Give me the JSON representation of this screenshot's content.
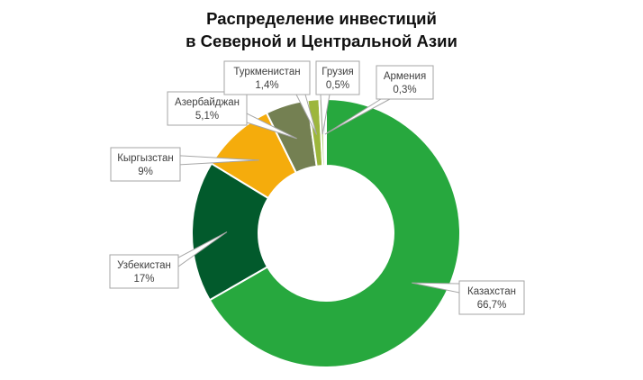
{
  "title_lines": [
    "Распределение инвестиций",
    "в Северной и Центральной Азии"
  ],
  "chart_data": {
    "type": "pie",
    "variant": "doughnut",
    "title": "Распределение инвестиций в Северной и Центральной Азии",
    "unit": "%",
    "slices": [
      {
        "name": "Казахстан",
        "value": 66.7,
        "label": "66,7%",
        "color": "#27a83e"
      },
      {
        "name": "Узбекистан",
        "value": 17,
        "label": "17%",
        "color": "#025a2c"
      },
      {
        "name": "Кыргызстан",
        "value": 9,
        "label": "9%",
        "color": "#f5ac0c"
      },
      {
        "name": "Азербайджан",
        "value": 5.1,
        "label": "5,1%",
        "color": "#748052"
      },
      {
        "name": "Туркменистан",
        "value": 1.4,
        "label": "1,4%",
        "color": "#9db63c"
      },
      {
        "name": "Грузия",
        "value": 0.5,
        "label": "0,5%",
        "color": "#bcd58a"
      },
      {
        "name": "Армения",
        "value": 0.3,
        "label": "0,3%",
        "color": "#7fa7c9"
      }
    ],
    "legend": "none",
    "data_labels": "callouts with category name and percentage"
  }
}
